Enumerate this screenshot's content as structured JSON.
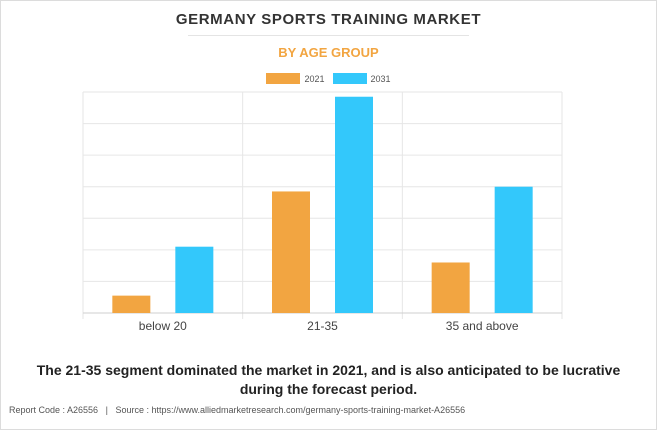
{
  "title": "GERMANY SPORTS TRAINING MARKET",
  "subtitle": "BY AGE GROUP",
  "summary": "The 21-35 segment dominated the market in 2021, and is also anticipated to be lucrative during the forecast period.",
  "footer": {
    "report_code": "Report Code : A26556",
    "separator": "|",
    "source": "Source : https://www.alliedmarketresearch.com/germany-sports-training-market-A26556"
  },
  "colors": {
    "2021": "#f2a541",
    "2031": "#33c8fb",
    "subtitle": "#f2a541",
    "grid": "#e6e6e6"
  },
  "chart_data": {
    "type": "bar",
    "title": "GERMANY SPORTS TRAINING MARKET",
    "subtitle": "BY AGE GROUP",
    "categories": [
      "below 20",
      "21-35",
      "35 and above"
    ],
    "series": [
      {
        "name": "2021",
        "color": "#f2a541",
        "values": [
          0.55,
          3.85,
          1.6
        ]
      },
      {
        "name": "2031",
        "color": "#33c8fb",
        "values": [
          2.1,
          6.85,
          4.0
        ]
      }
    ],
    "ylim": [
      0,
      7
    ],
    "y_tick_labels_shown": false,
    "grid": true,
    "legend": "top-center"
  }
}
